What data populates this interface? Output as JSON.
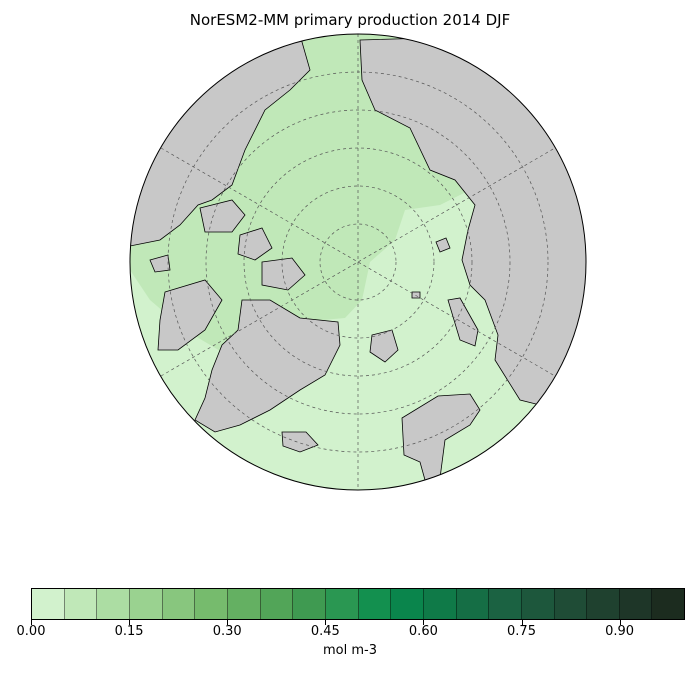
{
  "title": "NorESM2-MM primary production 2014 DJF",
  "map": {
    "projection": "north-polar-stereographic",
    "ocean_values": {
      "central_arctic_and_canadian_side": "0.05–0.10",
      "atlantic_side_and_margins": "0.00–0.05"
    },
    "land_color": "#c8c8c8",
    "coastline_color": "#000000",
    "graticule": "dashed gray"
  },
  "colorbar": {
    "unit": "mol m-3",
    "vmin": 0.0,
    "vmax": 1.0,
    "step": 0.05,
    "tick_labels": [
      "0.00",
      "0.15",
      "0.30",
      "0.45",
      "0.60",
      "0.75",
      "0.90"
    ],
    "colors": [
      "#d2f2cd",
      "#c0e8b8",
      "#acdda3",
      "#9ad290",
      "#88c67e",
      "#76bb6d",
      "#64b062",
      "#52a558",
      "#3f9a51",
      "#2a9752",
      "#13904f",
      "#0a854c",
      "#0f7a48",
      "#156e45",
      "#1b6242",
      "#1d573c",
      "#1f4c36",
      "#1f412f",
      "#1e3628",
      "#1c2c1f"
    ]
  }
}
